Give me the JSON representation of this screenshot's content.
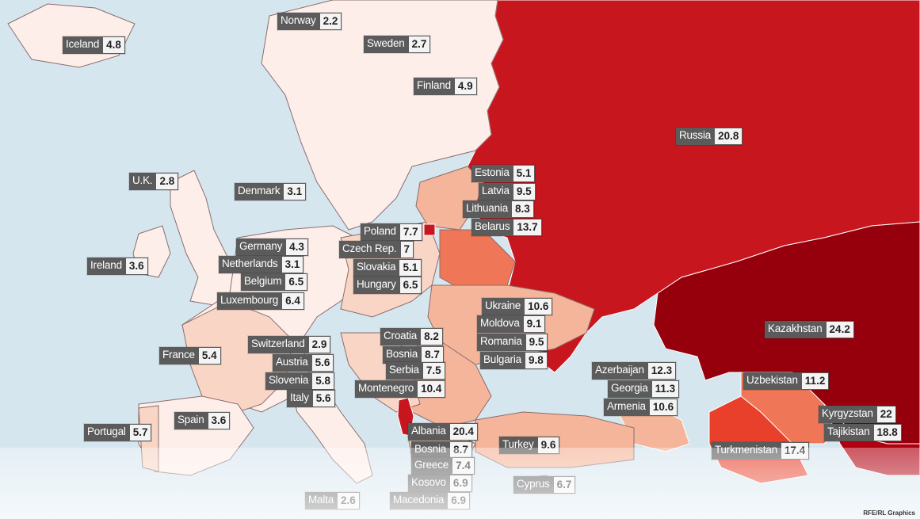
{
  "credit": "RFE/RL Graphics",
  "colors": {
    "sea": "#d6e6ef",
    "lowest": "#fdeee9",
    "low": "#f9d5c6",
    "medium": "#f5b59b",
    "high": "#ef7656",
    "very_high": "#c8161e",
    "highest": "#95000c"
  },
  "countries": [
    {
      "name": "Iceland",
      "value": "4.8"
    },
    {
      "name": "Norway",
      "value": "2.2"
    },
    {
      "name": "Sweden",
      "value": "2.7"
    },
    {
      "name": "Finland",
      "value": "4.9"
    },
    {
      "name": "Russia",
      "value": "20.8"
    },
    {
      "name": "U.K.",
      "value": "2.8"
    },
    {
      "name": "Denmark",
      "value": "3.1"
    },
    {
      "name": "Estonia",
      "value": "5.1"
    },
    {
      "name": "Latvia",
      "value": "9.5"
    },
    {
      "name": "Lithuania",
      "value": "8.3"
    },
    {
      "name": "Belarus",
      "value": "13.7"
    },
    {
      "name": "Poland",
      "value": "7.7"
    },
    {
      "name": "Czech Rep.",
      "value": "7"
    },
    {
      "name": "Slovakia",
      "value": "5.1"
    },
    {
      "name": "Hungary",
      "value": "6.5"
    },
    {
      "name": "Germany",
      "value": "4.3"
    },
    {
      "name": "Netherlands",
      "value": "3.1"
    },
    {
      "name": "Belgium",
      "value": "6.5"
    },
    {
      "name": "Luxembourg",
      "value": "6.4"
    },
    {
      "name": "Ireland",
      "value": "3.6"
    },
    {
      "name": "Kazakhstan",
      "value": "24.2"
    },
    {
      "name": "Ukraine",
      "value": "10.6"
    },
    {
      "name": "Moldova",
      "value": "9.1"
    },
    {
      "name": "Romania",
      "value": "9.5"
    },
    {
      "name": "Bulgaria",
      "value": "9.8"
    },
    {
      "name": "Croatia",
      "value": "8.2"
    },
    {
      "name": "Bosnia",
      "value": "8.7"
    },
    {
      "name": "Serbia",
      "value": "7.5"
    },
    {
      "name": "Montenegro",
      "value": "10.4"
    },
    {
      "name": "Switzerland",
      "value": "2.9"
    },
    {
      "name": "Austria",
      "value": "5.6"
    },
    {
      "name": "Slovenia",
      "value": "5.8"
    },
    {
      "name": "Italy",
      "value": "5.6"
    },
    {
      "name": "France",
      "value": "5.4"
    },
    {
      "name": "Azerbaijan",
      "value": "12.3"
    },
    {
      "name": "Georgia",
      "value": "11.3"
    },
    {
      "name": "Armenia",
      "value": "10.6"
    },
    {
      "name": "Uzbekistan",
      "value": "11.2"
    },
    {
      "name": "Kyrgyzstan",
      "value": "22"
    },
    {
      "name": "Tajikistan",
      "value": "18.8"
    },
    {
      "name": "Spain",
      "value": "3.6"
    },
    {
      "name": "Portugal",
      "value": "5.7"
    },
    {
      "name": "Albania",
      "value": "20.4"
    },
    {
      "name": "Bosnia",
      "value": "8.7"
    },
    {
      "name": "Greece",
      "value": "7.4"
    },
    {
      "name": "Kosovo",
      "value": "6.9"
    },
    {
      "name": "Macedonia",
      "value": "6.9"
    },
    {
      "name": "Turkey",
      "value": "9.6"
    },
    {
      "name": "Turkmenistan",
      "value": "17.4"
    },
    {
      "name": "Cyprus",
      "value": "6.7"
    },
    {
      "name": "Malta",
      "value": "2.6"
    }
  ]
}
